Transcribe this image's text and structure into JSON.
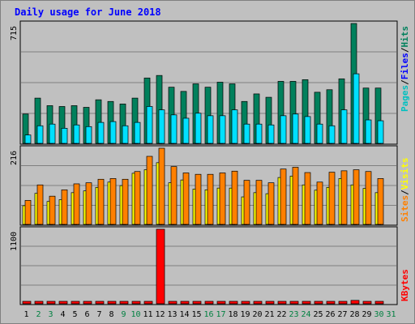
{
  "title": "Daily usage for June 2018",
  "colors": {
    "bg": "#c0c0c0",
    "hits": "#00805c",
    "files": "#00e0ff",
    "pages": "#00c0c0",
    "visits": "#ff8000",
    "sites": "#ffff00",
    "kbytes": "#ff0000",
    "weekday": "#000000",
    "weekend": "#008040"
  },
  "chart_data": [
    {
      "type": "bar",
      "panel": "hits-files-pages",
      "ylim": [
        0,
        715
      ],
      "max_label": "715",
      "legend": [
        {
          "name": "Pages",
          "color": "#00c0c0"
        },
        {
          "name": "Files",
          "color": "#0000ff"
        },
        {
          "name": "Hits",
          "color": "#00805c"
        }
      ],
      "legend_separator": "/",
      "categories": [
        "1",
        "2",
        "3",
        "4",
        "5",
        "6",
        "7",
        "8",
        "9",
        "10",
        "11",
        "12",
        "13",
        "14",
        "15",
        "16",
        "17",
        "18",
        "19",
        "20",
        "21",
        "22",
        "23",
        "24",
        "25",
        "26",
        "27",
        "28",
        "29",
        "30",
        "31"
      ],
      "series": [
        {
          "name": "Hits",
          "values": [
            175,
            270,
            225,
            220,
            225,
            215,
            260,
            250,
            235,
            270,
            390,
            405,
            335,
            310,
            355,
            335,
            365,
            355,
            250,
            295,
            275,
            370,
            370,
            380,
            305,
            320,
            385,
            715,
            330,
            330,
            0
          ]
        },
        {
          "name": "Files",
          "values": [
            50,
            105,
            115,
            90,
            110,
            100,
            125,
            130,
            105,
            125,
            220,
            200,
            170,
            150,
            180,
            165,
            165,
            200,
            115,
            115,
            110,
            165,
            175,
            160,
            115,
            105,
            200,
            415,
            140,
            135,
            0
          ]
        }
      ]
    },
    {
      "type": "bar",
      "panel": "visits-sites",
      "ylim": [
        0,
        216
      ],
      "max_label": "216",
      "legend": [
        {
          "name": "Sites",
          "color": "#ff8000"
        },
        {
          "name": "Visits",
          "color": "#ffff00"
        }
      ],
      "legend_separator": "/",
      "categories": [
        "1",
        "2",
        "3",
        "4",
        "5",
        "6",
        "7",
        "8",
        "9",
        "10",
        "11",
        "12",
        "13",
        "14",
        "15",
        "16",
        "17",
        "18",
        "19",
        "20",
        "21",
        "22",
        "23",
        "24",
        "25",
        "26",
        "27",
        "28",
        "29",
        "30",
        "31"
      ],
      "series": [
        {
          "name": "Sites",
          "values": [
            53,
            88,
            65,
            70,
            90,
            95,
            105,
            120,
            110,
            145,
            155,
            175,
            118,
            126,
            100,
            98,
            103,
            103,
            78,
            90,
            87,
            133,
            137,
            112,
            97,
            105,
            130,
            112,
            102,
            90,
            0
          ]
        },
        {
          "name": "Visits",
          "values": [
            68,
            112,
            80,
            98,
            115,
            118,
            128,
            130,
            128,
            150,
            193,
            216,
            164,
            146,
            142,
            142,
            146,
            151,
            125,
            125,
            118,
            157,
            162,
            147,
            120,
            148,
            152,
            155,
            150,
            130,
            0
          ]
        }
      ]
    },
    {
      "type": "bar",
      "panel": "kbytes",
      "ylim": [
        0,
        1100
      ],
      "max_label": "1100",
      "legend": [
        {
          "name": "KBytes",
          "color": "#ff0000"
        }
      ],
      "categories": [
        "1",
        "2",
        "3",
        "4",
        "5",
        "6",
        "7",
        "8",
        "9",
        "10",
        "11",
        "12",
        "13",
        "14",
        "15",
        "16",
        "17",
        "18",
        "19",
        "20",
        "21",
        "22",
        "23",
        "24",
        "25",
        "26",
        "27",
        "28",
        "29",
        "30",
        "31"
      ],
      "series": [
        {
          "name": "KBytes",
          "values": [
            13,
            18,
            18,
            18,
            18,
            18,
            18,
            18,
            18,
            22,
            32,
            1100,
            22,
            22,
            22,
            22,
            22,
            26,
            22,
            22,
            22,
            28,
            28,
            28,
            22,
            22,
            22,
            50,
            22,
            22,
            0
          ]
        }
      ]
    }
  ],
  "day_labels": [
    "1",
    "2",
    "3",
    "4",
    "5",
    "6",
    "7",
    "8",
    "9",
    "10",
    "11",
    "12",
    "13",
    "14",
    "15",
    "16",
    "17",
    "18",
    "19",
    "20",
    "21",
    "22",
    "23",
    "24",
    "25",
    "26",
    "27",
    "28",
    "29",
    "30",
    "31"
  ],
  "weekend_days": [
    2,
    3,
    9,
    10,
    16,
    17,
    23,
    24,
    30,
    31
  ]
}
